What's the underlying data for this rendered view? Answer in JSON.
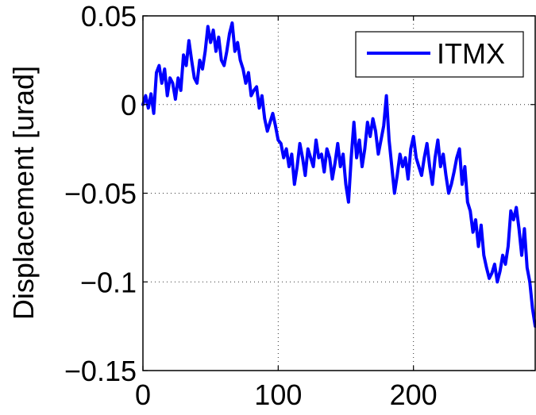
{
  "chart_data": {
    "type": "line",
    "xlabel": "",
    "ylabel": "Displacement [urad]",
    "xlim": [
      0,
      290
    ],
    "ylim": [
      -0.15,
      0.05
    ],
    "x_ticks": [
      0,
      100,
      200
    ],
    "y_ticks": [
      0.05,
      0,
      -0.05,
      -0.1,
      -0.15
    ],
    "x_tick_labels": [
      "0",
      "100",
      "200"
    ],
    "y_tick_labels": [
      "0.05",
      "0",
      "−0.05",
      "−0.1",
      "−0.15"
    ],
    "grid": true,
    "legend_position": "top-right",
    "series": [
      {
        "name": "ITMX",
        "color": "#0000ff",
        "x": [
          0,
          2,
          4,
          6,
          8,
          10,
          12,
          14,
          16,
          18,
          20,
          22,
          24,
          26,
          28,
          30,
          32,
          34,
          36,
          38,
          40,
          42,
          44,
          46,
          48,
          50,
          52,
          54,
          56,
          58,
          60,
          62,
          64,
          66,
          68,
          70,
          72,
          74,
          76,
          78,
          80,
          82,
          84,
          86,
          88,
          90,
          92,
          94,
          96,
          98,
          100,
          102,
          104,
          106,
          108,
          110,
          112,
          114,
          116,
          118,
          120,
          122,
          124,
          126,
          128,
          130,
          132,
          134,
          136,
          138,
          140,
          142,
          144,
          146,
          148,
          150,
          152,
          154,
          156,
          158,
          160,
          162,
          164,
          166,
          168,
          170,
          172,
          174,
          176,
          178,
          180,
          182,
          184,
          186,
          188,
          190,
          192,
          194,
          196,
          198,
          200,
          202,
          204,
          206,
          208,
          210,
          212,
          214,
          216,
          218,
          220,
          222,
          224,
          226,
          228,
          230,
          232,
          234,
          236,
          238,
          240,
          242,
          244,
          246,
          248,
          250,
          252,
          254,
          256,
          258,
          260,
          262,
          264,
          266,
          268,
          270,
          272,
          274,
          276,
          278,
          280,
          282,
          284,
          286,
          288,
          290
        ],
        "y": [
          0.0,
          0.005,
          -0.002,
          0.006,
          -0.005,
          0.018,
          0.022,
          0.012,
          0.02,
          0.005,
          0.015,
          0.012,
          0.003,
          0.015,
          0.008,
          0.028,
          0.022,
          0.036,
          0.025,
          0.015,
          0.012,
          0.025,
          0.02,
          0.03,
          0.044,
          0.035,
          0.042,
          0.03,
          0.038,
          0.025,
          0.022,
          0.03,
          0.04,
          0.046,
          0.03,
          0.035,
          0.025,
          0.02,
          0.012,
          0.018,
          0.005,
          0.008,
          0.01,
          -0.002,
          0.005,
          -0.008,
          -0.015,
          -0.01,
          -0.005,
          -0.012,
          -0.02,
          -0.022,
          -0.03,
          -0.025,
          -0.035,
          -0.028,
          -0.045,
          -0.035,
          -0.022,
          -0.03,
          -0.04,
          -0.025,
          -0.03,
          -0.035,
          -0.02,
          -0.03,
          -0.028,
          -0.038,
          -0.025,
          -0.03,
          -0.042,
          -0.033,
          -0.022,
          -0.035,
          -0.028,
          -0.045,
          -0.055,
          -0.03,
          -0.01,
          -0.03,
          -0.02,
          -0.035,
          -0.025,
          -0.01,
          -0.018,
          -0.008,
          -0.015,
          -0.028,
          -0.02,
          -0.012,
          0.005,
          -0.02,
          -0.035,
          -0.05,
          -0.04,
          -0.028,
          -0.035,
          -0.03,
          -0.042,
          -0.025,
          -0.018,
          -0.03,
          -0.035,
          -0.04,
          -0.03,
          -0.022,
          -0.035,
          -0.045,
          -0.03,
          -0.02,
          -0.035,
          -0.028,
          -0.04,
          -0.05,
          -0.045,
          -0.038,
          -0.03,
          -0.025,
          -0.045,
          -0.035,
          -0.055,
          -0.06,
          -0.072,
          -0.065,
          -0.08,
          -0.068,
          -0.085,
          -0.092,
          -0.098,
          -0.095,
          -0.09,
          -0.1,
          -0.094,
          -0.085,
          -0.09,
          -0.08,
          -0.06,
          -0.065,
          -0.058,
          -0.07,
          -0.085,
          -0.07,
          -0.092,
          -0.1,
          -0.115,
          -0.125
        ]
      }
    ]
  }
}
